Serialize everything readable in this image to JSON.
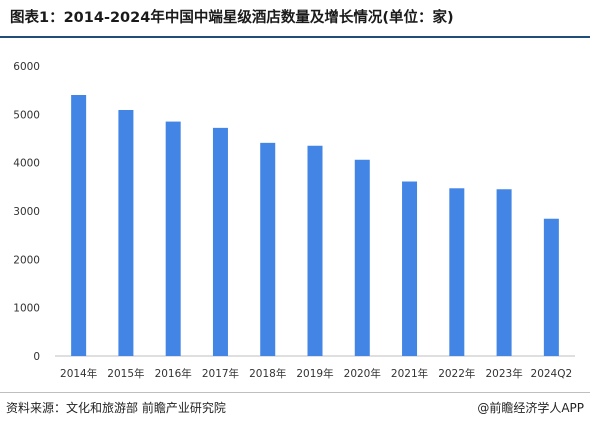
{
  "title": "图表1：2014-2024年中国中端星级酒店数量及增长情况(单位：家)",
  "source": "资料来源：文化和旅游部 前瞻产业研究院",
  "brand": "@前瞻经济学人APP",
  "colors": {
    "bar": "#4285e4",
    "title_rule": "#1f4e79"
  },
  "chart_data": {
    "type": "bar",
    "title": "图表1：2014-2024年中国中端星级酒店数量及增长情况(单位：家)",
    "categories": [
      "2014年",
      "2015年",
      "2016年",
      "2017年",
      "2018年",
      "2019年",
      "2020年",
      "2021年",
      "2022年",
      "2023年",
      "2024Q2"
    ],
    "values": [
      5400,
      5090,
      4850,
      4720,
      4410,
      4350,
      4060,
      3610,
      3470,
      3450,
      2840
    ],
    "ylim": [
      0,
      6000
    ],
    "yticks": [
      "0",
      "1000",
      "2000",
      "3000",
      "4000",
      "5000",
      "6000"
    ],
    "xlabel": "",
    "ylabel": "",
    "grid": false,
    "legend": "none"
  }
}
